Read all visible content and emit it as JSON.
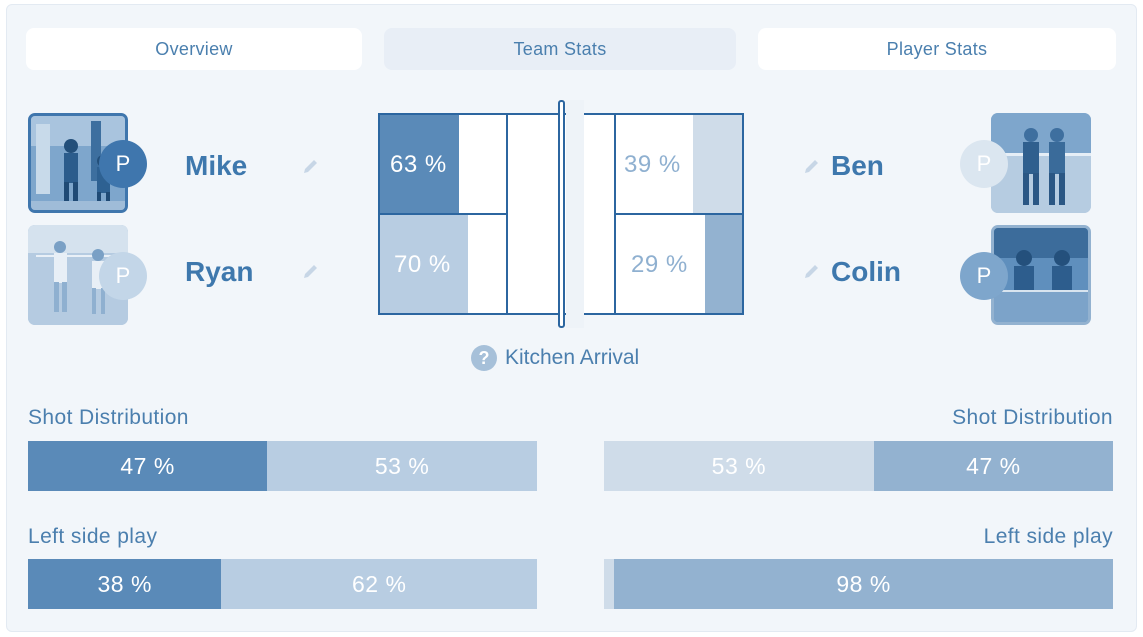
{
  "tabs": [
    {
      "label": "Overview",
      "active": false
    },
    {
      "label": "Team Stats",
      "active": true
    },
    {
      "label": "Player Stats",
      "active": false
    }
  ],
  "team_left": {
    "players": [
      {
        "name": "Mike",
        "badge": "P"
      },
      {
        "name": "Ryan",
        "badge": "P"
      }
    ]
  },
  "team_right": {
    "players": [
      {
        "name": "Ben",
        "badge": "P"
      },
      {
        "name": "Colin",
        "badge": "P"
      }
    ]
  },
  "court": {
    "mike_pct": "63 %",
    "ryan_pct": "70 %",
    "ben_pct": "39 %",
    "colin_pct": "29 %",
    "values": {
      "mike": 63,
      "ryan": 70,
      "ben": 39,
      "colin": 29
    }
  },
  "kitchen": {
    "icon": "question-icon",
    "label": "Kitchen Arrival"
  },
  "shot_distribution": {
    "left_label": "Shot Distribution",
    "right_label": "Shot Distribution",
    "left": [
      {
        "label": "47 %",
        "value": 47
      },
      {
        "label": "53 %",
        "value": 53
      }
    ],
    "right": [
      {
        "label": "53 %",
        "value": 53
      },
      {
        "label": "47 %",
        "value": 47
      }
    ]
  },
  "left_side_play": {
    "left_label": "Left side play",
    "right_label": "Left side play",
    "left": [
      {
        "label": "38 %",
        "value": 38
      },
      {
        "label": "62 %",
        "value": 62
      }
    ],
    "right": [
      {
        "label": "",
        "value": 2
      },
      {
        "label": "98 %",
        "value": 98
      }
    ]
  },
  "colors": {
    "dark": "#5a8ab8",
    "light": "#b8cde2",
    "lighter": "#cfdce9",
    "mid": "#93b2d0",
    "court_line": "#2c66a0"
  }
}
